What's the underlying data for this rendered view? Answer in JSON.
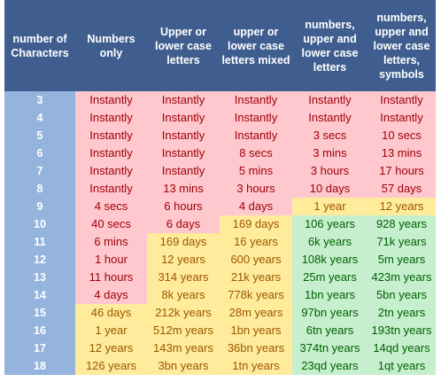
{
  "headers": [
    "number of Characters",
    "Numbers only",
    "Upper or lower case letters",
    "upper or lower case letters mixed",
    "numbers, upper and lower case letters",
    "numbers, upper and lower case letters, symbols"
  ],
  "colors": {
    "header_bg": "#3f5e8f",
    "number_col_bg": "#94b3dd",
    "red_bg": "#ffc7ce",
    "red_text": "#9c0006",
    "yellow_bg": "#ffeb9c",
    "yellow_text": "#9c5700",
    "green_bg": "#c6efce",
    "green_text": "#006100"
  },
  "rows": [
    {
      "n": "3",
      "cells": [
        [
          "Instantly",
          "red"
        ],
        [
          "Instantly",
          "red"
        ],
        [
          "Instantly",
          "red"
        ],
        [
          "Instantly",
          "red"
        ],
        [
          "Instantly",
          "red"
        ]
      ]
    },
    {
      "n": "4",
      "cells": [
        [
          "Instantly",
          "red"
        ],
        [
          "Instantly",
          "red"
        ],
        [
          "Instantly",
          "red"
        ],
        [
          "Instantly",
          "red"
        ],
        [
          "Instantly",
          "red"
        ]
      ]
    },
    {
      "n": "5",
      "cells": [
        [
          "Instantly",
          "red"
        ],
        [
          "Instantly",
          "red"
        ],
        [
          "Instantly",
          "red"
        ],
        [
          "3 secs",
          "red"
        ],
        [
          "10 secs",
          "red"
        ]
      ]
    },
    {
      "n": "6",
      "cells": [
        [
          "Instantly",
          "red"
        ],
        [
          "Instantly",
          "red"
        ],
        [
          "8 secs",
          "red"
        ],
        [
          "3 mins",
          "red"
        ],
        [
          "13 mins",
          "red"
        ]
      ]
    },
    {
      "n": "7",
      "cells": [
        [
          "Instantly",
          "red"
        ],
        [
          "Instantly",
          "red"
        ],
        [
          "5 mins",
          "red"
        ],
        [
          "3 hours",
          "red"
        ],
        [
          "17 hours",
          "red"
        ]
      ]
    },
    {
      "n": "8",
      "cells": [
        [
          "Instantly",
          "red"
        ],
        [
          "13 mins",
          "red"
        ],
        [
          "3 hours",
          "red"
        ],
        [
          "10 days",
          "red"
        ],
        [
          "57 days",
          "red"
        ]
      ]
    },
    {
      "n": "9",
      "cells": [
        [
          "4 secs",
          "red"
        ],
        [
          "6 hours",
          "red"
        ],
        [
          "4 days",
          "red"
        ],
        [
          "1 year",
          "yellow"
        ],
        [
          "12 years",
          "yellow"
        ]
      ]
    },
    {
      "n": "10",
      "cells": [
        [
          "40 secs",
          "red"
        ],
        [
          "6 days",
          "red"
        ],
        [
          "169 days",
          "yellow"
        ],
        [
          "106 years",
          "green"
        ],
        [
          "928 years",
          "green"
        ]
      ]
    },
    {
      "n": "11",
      "cells": [
        [
          "6 mins",
          "red"
        ],
        [
          "169 days",
          "yellow"
        ],
        [
          "16 years",
          "yellow"
        ],
        [
          "6k years",
          "green"
        ],
        [
          "71k years",
          "green"
        ]
      ]
    },
    {
      "n": "12",
      "cells": [
        [
          "1 hour",
          "red"
        ],
        [
          "12 years",
          "yellow"
        ],
        [
          "600 years",
          "yellow"
        ],
        [
          "108k years",
          "green"
        ],
        [
          "5m years",
          "green"
        ]
      ]
    },
    {
      "n": "13",
      "cells": [
        [
          "11 hours",
          "red"
        ],
        [
          "314 years",
          "yellow"
        ],
        [
          "21k years",
          "yellow"
        ],
        [
          "25m years",
          "green"
        ],
        [
          "423m years",
          "green"
        ]
      ]
    },
    {
      "n": "14",
      "cells": [
        [
          "4 days",
          "red"
        ],
        [
          "8k years",
          "yellow"
        ],
        [
          "778k years",
          "yellow"
        ],
        [
          "1bn years",
          "green"
        ],
        [
          "5bn years",
          "green"
        ]
      ]
    },
    {
      "n": "15",
      "cells": [
        [
          "46 days",
          "yellow"
        ],
        [
          "212k years",
          "yellow"
        ],
        [
          "28m years",
          "yellow"
        ],
        [
          "97bn years",
          "green"
        ],
        [
          "2tn years",
          "green"
        ]
      ]
    },
    {
      "n": "16",
      "cells": [
        [
          "1 year",
          "yellow"
        ],
        [
          "512m years",
          "yellow"
        ],
        [
          "1bn years",
          "yellow"
        ],
        [
          "6tn years",
          "green"
        ],
        [
          "193tn years",
          "green"
        ]
      ]
    },
    {
      "n": "17",
      "cells": [
        [
          "12 years",
          "yellow"
        ],
        [
          "143m years",
          "yellow"
        ],
        [
          "36bn years",
          "yellow"
        ],
        [
          "374tn years",
          "green"
        ],
        [
          "14qd years",
          "green"
        ]
      ]
    },
    {
      "n": "18",
      "cells": [
        [
          "126 years",
          "yellow"
        ],
        [
          "3bn years",
          "yellow"
        ],
        [
          "1tn years",
          "yellow"
        ],
        [
          "23qd years",
          "green"
        ],
        [
          "1qt years",
          "green"
        ]
      ]
    }
  ]
}
